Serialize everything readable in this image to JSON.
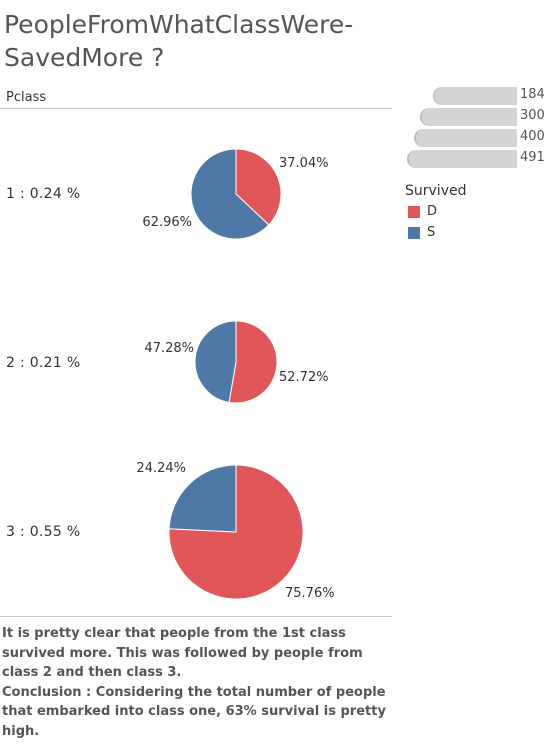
{
  "title_line1": "PeopleFromWhatClassWere-",
  "title_line2": "SavedMore ?",
  "row_header": "Pclass",
  "rows": [
    {
      "label": "1 : 0.24 %"
    },
    {
      "label": "2 : 0.21 %"
    },
    {
      "label": "3 : 0.55 %"
    }
  ],
  "size_legend": [
    "184",
    "300",
    "400",
    "491"
  ],
  "color_legend": {
    "title": "Survived",
    "items": [
      {
        "label": "D",
        "color": "#e15759"
      },
      {
        "label": "S",
        "color": "#4e79a7"
      }
    ]
  },
  "caption": {
    "paragraph1": "It is pretty clear that people from the 1st class survived more. This was followed by people from class 2 and then class 3.",
    "paragraph2": "Conclusion : Considering the total number of people that embarked into class one, 63% survival is pretty high."
  },
  "chart_data": {
    "type": "pie",
    "title": "PeopleFromWhatClassWere-SavedMore ?",
    "categories": [
      "D",
      "S"
    ],
    "colors": {
      "D": "#e15759",
      "S": "#4e79a7"
    },
    "pies": [
      {
        "pclass": "1",
        "row_label": "1 : 0.24 %",
        "size": 184,
        "slices": [
          {
            "name": "D",
            "value": 37.04,
            "label": "37.04%"
          },
          {
            "name": "S",
            "value": 62.96,
            "label": "62.96%"
          }
        ]
      },
      {
        "pclass": "2",
        "row_label": "2 : 0.21 %",
        "size": 184,
        "slices": [
          {
            "name": "D",
            "value": 52.72,
            "label": "52.72%"
          },
          {
            "name": "S",
            "value": 47.28,
            "label": "47.28%"
          }
        ]
      },
      {
        "pclass": "3",
        "row_label": "3 : 0.55 %",
        "size": 491,
        "slices": [
          {
            "name": "D",
            "value": 75.76,
            "label": "75.76%"
          },
          {
            "name": "S",
            "value": 24.24,
            "label": "24.24%"
          }
        ]
      }
    ]
  }
}
